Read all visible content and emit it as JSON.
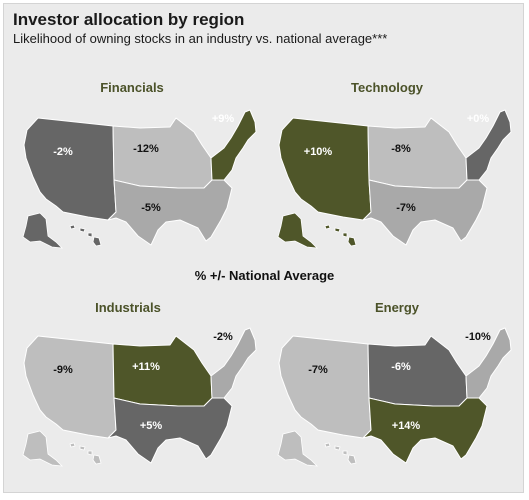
{
  "title": "Investor allocation by region",
  "subtitle": "Likelihood of owning stocks in an industry vs. national average***",
  "middle_label": "% +/- National Average",
  "colors": {
    "olive": "#4f5629",
    "dark_gray": "#666666",
    "light_gray": "#bebebe",
    "medium_gray": "#a9a9a9",
    "panel_background": "#ebebeb"
  },
  "panels": [
    {
      "name": "Financials",
      "regions": {
        "west": {
          "value": "-2%",
          "shade": "dark_gray"
        },
        "midwest": {
          "value": "-12%",
          "shade": "light_gray"
        },
        "south": {
          "value": "-5%",
          "shade": "medium_gray"
        },
        "northeast": {
          "value": "+9%",
          "shade": "olive"
        }
      },
      "alaska": "west",
      "hawaii": "west"
    },
    {
      "name": "Technology",
      "regions": {
        "west": {
          "value": "+10%",
          "shade": "olive"
        },
        "midwest": {
          "value": "-8%",
          "shade": "light_gray"
        },
        "south": {
          "value": "-7%",
          "shade": "medium_gray"
        },
        "northeast": {
          "value": "+0%",
          "shade": "dark_gray"
        }
      },
      "alaska": "west",
      "hawaii": "west"
    },
    {
      "name": "Industrials",
      "regions": {
        "west": {
          "value": "-9%",
          "shade": "light_gray"
        },
        "midwest": {
          "value": "+11%",
          "shade": "olive"
        },
        "south": {
          "value": "+5%",
          "shade": "dark_gray"
        },
        "northeast": {
          "value": "-2%",
          "shade": "medium_gray"
        }
      },
      "alaska": "west",
      "hawaii": "west"
    },
    {
      "name": "Energy",
      "regions": {
        "west": {
          "value": "-7%",
          "shade": "light_gray"
        },
        "midwest": {
          "value": "-6%",
          "shade": "dark_gray"
        },
        "south": {
          "value": "+14%",
          "shade": "olive"
        },
        "northeast": {
          "value": "-10%",
          "shade": "medium_gray"
        }
      },
      "alaska": "west",
      "hawaii": "west"
    }
  ]
}
